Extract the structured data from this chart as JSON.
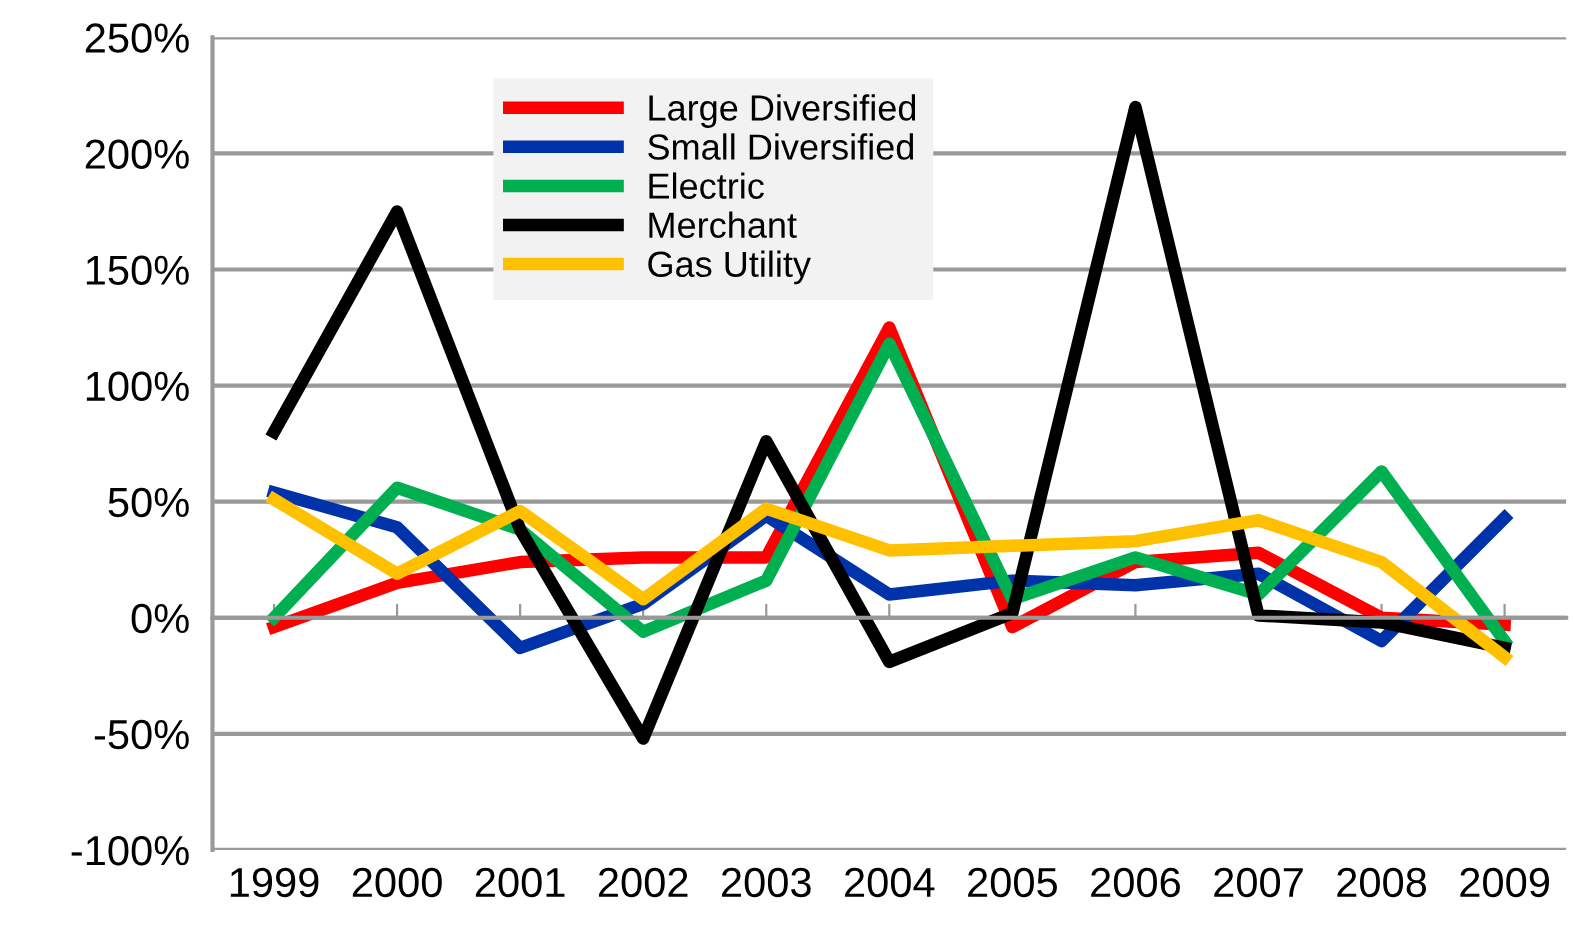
{
  "chart_data": {
    "type": "line",
    "categories": [
      "1999",
      "2000",
      "2001",
      "2002",
      "2003",
      "2004",
      "2005",
      "2006",
      "2007",
      "2008",
      "2009"
    ],
    "series": [
      {
        "name": "Large Diversified",
        "color": "#ff0000",
        "values": [
          -4,
          15,
          24,
          26,
          26,
          125,
          -4,
          24,
          28,
          0,
          -3
        ]
      },
      {
        "name": "Small Diversified",
        "color": "#0033aa",
        "values": [
          54,
          39,
          -13,
          6,
          44,
          10,
          16,
          14,
          19,
          -10,
          43
        ]
      },
      {
        "name": "Electric",
        "color": "#00b050",
        "values": [
          0,
          56,
          38,
          -6,
          16,
          118,
          8,
          26,
          10,
          63,
          -10
        ]
      },
      {
        "name": "Merchant",
        "color": "#000000",
        "values": [
          80,
          175,
          38,
          -52,
          76,
          -19,
          2,
          220,
          1,
          -2,
          -13
        ]
      },
      {
        "name": "Gas Utility",
        "color": "#ffc000",
        "values": [
          51,
          19,
          46,
          8,
          47,
          29,
          31,
          33,
          42,
          24,
          -17
        ]
      }
    ],
    "ylim": [
      -100,
      250
    ],
    "yticks": [
      {
        "value": -100,
        "label": "-100%"
      },
      {
        "value": -50,
        "label": "-50%"
      },
      {
        "value": 0,
        "label": "0%"
      },
      {
        "value": 50,
        "label": "50%"
      },
      {
        "value": 100,
        "label": "100%"
      },
      {
        "value": 150,
        "label": "150%"
      },
      {
        "value": 200,
        "label": "200%"
      },
      {
        "value": 250,
        "label": "250%"
      }
    ],
    "grid": "y",
    "legend": "top",
    "marker": "none",
    "line_style": "solid"
  }
}
